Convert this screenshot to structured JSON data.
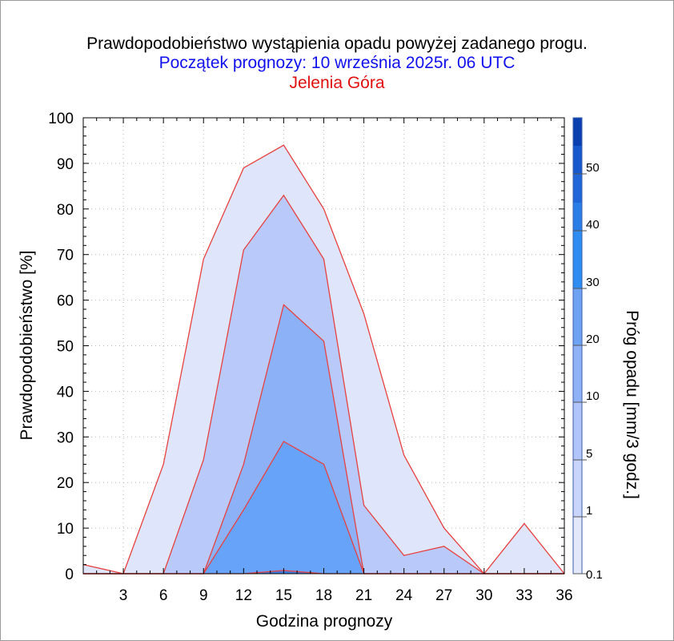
{
  "header": {
    "title": "Prawdopodobieństwo wystąpienia opadu powyżej zadanego progu.",
    "subtitle": "Początek prognozy: 10 września 2025r. 06 UTC",
    "location": "Jelenia Góra"
  },
  "chart_data": {
    "type": "area",
    "xlabel": "Godzina prognozy",
    "ylabel": "Prawdopodobieństwo [%]",
    "colorbar_label": "Próg opadu [mm/3 godz.]",
    "xlim": [
      0,
      36
    ],
    "ylim": [
      0,
      100
    ],
    "x_ticks": [
      3,
      6,
      9,
      12,
      15,
      18,
      21,
      24,
      27,
      30,
      33,
      36
    ],
    "y_ticks": [
      0,
      10,
      20,
      30,
      40,
      50,
      60,
      70,
      80,
      90,
      100
    ],
    "grid": true,
    "x": [
      0,
      3,
      6,
      9,
      12,
      15,
      18,
      21,
      24,
      27,
      30,
      33,
      36
    ],
    "series": [
      {
        "name": "0.1",
        "color": "#dfe5fb",
        "values": [
          2,
          0,
          24,
          69,
          89,
          94,
          80,
          57,
          26,
          10,
          0,
          11,
          0
        ]
      },
      {
        "name": "1",
        "color": "#b9cafa",
        "values": [
          0,
          0,
          0,
          25,
          71,
          83,
          69,
          15,
          4,
          6,
          0,
          0,
          0
        ]
      },
      {
        "name": "5",
        "color": "#8cb1f7",
        "values": [
          0,
          0,
          0,
          0,
          24,
          59,
          51,
          0,
          0,
          0,
          0,
          0,
          0
        ]
      },
      {
        "name": "10",
        "color": "#68a3fa",
        "values": [
          0,
          0,
          0,
          0,
          14,
          29,
          24,
          0,
          0,
          0,
          0,
          0,
          0
        ]
      },
      {
        "name": "20",
        "color": "#3d7ee0",
        "values": [
          0,
          0,
          0,
          0,
          0,
          0.7,
          0,
          0,
          0,
          0,
          0,
          0,
          0
        ]
      }
    ],
    "colorbar": {
      "labels": [
        "0.1",
        "1",
        "5",
        "10",
        "20",
        "30",
        "40",
        "50"
      ],
      "colors": [
        "#e4e8fb",
        "#c9d4fb",
        "#b1c5fa",
        "#8fb2f7",
        "#6ea3f3",
        "#2f8df2",
        "#2a7ee6",
        "#2166d9",
        "#1858cd",
        "#0a3fb0"
      ]
    }
  }
}
